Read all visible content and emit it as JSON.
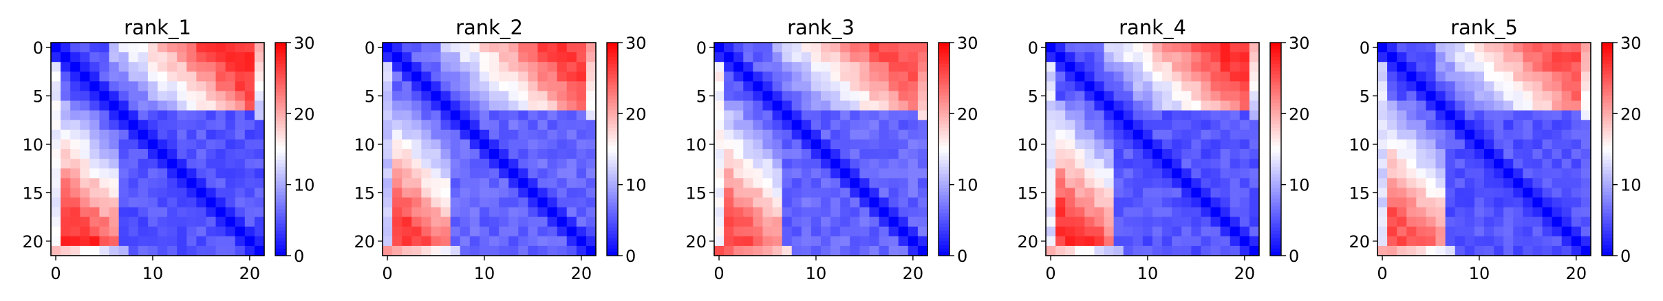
{
  "chart_data": [
    {
      "type": "heatmap",
      "title": "rank_1",
      "size": 22,
      "colormap": "bwr",
      "clim": [
        0,
        30
      ],
      "x_ticks": [
        0,
        10,
        20
      ],
      "y_ticks": [
        0,
        5,
        10,
        15,
        20
      ],
      "colorbar_ticks": [
        0,
        10,
        20,
        30
      ],
      "pattern": {
        "diag": 0,
        "near": 3.5,
        "top_right": 27,
        "lower_block": 5,
        "bottom_row": 19,
        "left_col": 14
      }
    },
    {
      "type": "heatmap",
      "title": "rank_2",
      "size": 22,
      "colormap": "bwr",
      "clim": [
        0,
        30
      ],
      "x_ticks": [
        0,
        10,
        20
      ],
      "y_ticks": [
        0,
        5,
        10,
        15,
        20
      ],
      "colorbar_ticks": [
        0,
        10,
        20,
        30
      ],
      "pattern": {
        "diag": 0,
        "near": 4,
        "top_right": 26,
        "lower_block": 6,
        "bottom_row": 21,
        "left_col": 12
      }
    },
    {
      "type": "heatmap",
      "title": "rank_3",
      "size": 22,
      "colormap": "bwr",
      "clim": [
        0,
        30
      ],
      "x_ticks": [
        0,
        10,
        20
      ],
      "y_ticks": [
        0,
        5,
        10,
        15,
        20
      ],
      "colorbar_ticks": [
        0,
        10,
        20,
        30
      ],
      "pattern": {
        "diag": 0,
        "near": 4,
        "top_right": 25,
        "lower_block": 6,
        "bottom_row": 25,
        "left_col": 15
      }
    },
    {
      "type": "heatmap",
      "title": "rank_4",
      "size": 22,
      "colormap": "bwr",
      "clim": [
        0,
        30
      ],
      "x_ticks": [
        0,
        10,
        20
      ],
      "y_ticks": [
        0,
        5,
        10,
        15,
        20
      ],
      "colorbar_ticks": [
        0,
        10,
        20,
        30
      ],
      "pattern": {
        "diag": 0,
        "near": 4,
        "top_right": 27,
        "lower_block": 5,
        "bottom_row": 19,
        "left_col": 13
      }
    },
    {
      "type": "heatmap",
      "title": "rank_5",
      "size": 22,
      "colormap": "bwr",
      "clim": [
        0,
        30
      ],
      "x_ticks": [
        0,
        10,
        20
      ],
      "y_ticks": [
        0,
        5,
        10,
        15,
        20
      ],
      "colorbar_ticks": [
        0,
        10,
        20,
        30
      ],
      "pattern": {
        "diag": 0,
        "near": 4,
        "top_right": 25,
        "lower_block": 5,
        "bottom_row": 21,
        "left_col": 13
      }
    }
  ]
}
